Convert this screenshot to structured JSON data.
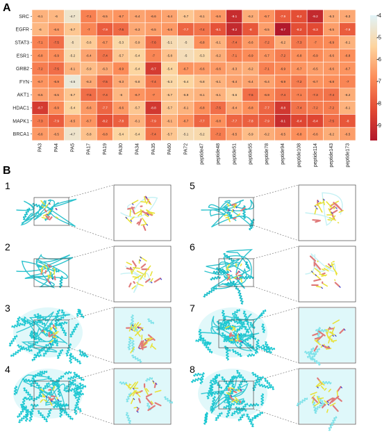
{
  "panel_a_label": "A",
  "panel_b_label": "B",
  "chart_data": {
    "type": "heatmap",
    "rows": [
      "SRC",
      "EGFR",
      "STAT3",
      "ESR1",
      "GRB2",
      "FYN",
      "AKT1",
      "HDAC1",
      "MAPK1",
      "BRCA1"
    ],
    "columns": [
      "PA3",
      "PA4",
      "PA5",
      "PA17",
      "PA19",
      "PA30",
      "PA34",
      "PA35",
      "PA60",
      "PA72",
      "peptide47",
      "peptide48",
      "peptide51",
      "peptide55",
      "peptide78",
      "peptide94",
      "peptide108",
      "peptide114",
      "peptide143",
      "peptide173"
    ],
    "values": [
      [
        -6.1,
        -6,
        -4.7,
        -7.1,
        -6.5,
        -6.7,
        -6.4,
        -6.6,
        -6.4,
        -5.7,
        -6.1,
        -6.6,
        -9.1,
        -6.2,
        -6.7,
        -7.9,
        -8.2,
        -9.2,
        -6.3,
        -6.3
      ],
      [
        -6,
        -6.6,
        -5.7,
        -7,
        -7.9,
        -7.6,
        -6.3,
        -6.5,
        -6.6,
        -7.7,
        -7.4,
        -8.1,
        -9.2,
        -8,
        -6.5,
        -9.7,
        -8.2,
        -8.3,
        -6.5,
        -7.9
      ],
      [
        -7.1,
        -7.5,
        -5,
        -5.6,
        -6.7,
        -5.3,
        -5.9,
        -7.6,
        -5.1,
        -5,
        -6.8,
        -6.1,
        -7.4,
        -6.6,
        -7.2,
        -6.2,
        -7.3,
        -7,
        -6.9,
        -6.1
      ],
      [
        -6.8,
        -6.9,
        -5.2,
        -6.4,
        -7.4,
        -5.7,
        -5.4,
        -7,
        -5.8,
        -5,
        -5.3,
        -6.2,
        -7.1,
        -6.9,
        -6.7,
        -7.2,
        -6.8,
        -6.9,
        -6.6,
        -6.8
      ],
      [
        -7.2,
        -7.5,
        -6.1,
        -5.9,
        -6.3,
        -6.9,
        -5.4,
        -8.7,
        -5.4,
        -6.7,
        -6.6,
        -6.6,
        -6.3,
        -6.2,
        -7.1,
        -6.9,
        -6.7,
        -6.5,
        -6.6,
        -6.7
      ],
      [
        -6.7,
        -6.9,
        -4.5,
        -6.3,
        -7.5,
        -6.3,
        -5.8,
        -7.4,
        -5.3,
        -5.4,
        -5.8,
        -6.1,
        -6.4,
        -6.4,
        -6.4,
        -6.9,
        -7.2,
        -6.7,
        -6.8,
        -7
      ],
      [
        -6.5,
        -6.5,
        -5.7,
        -7.5,
        -7.4,
        -6,
        -6.7,
        -7,
        -5.7,
        -5.9,
        -6.1,
        -6.1,
        -5.6,
        -7.5,
        -6.9,
        -7.4,
        -7.1,
        -7.3,
        -7.4,
        -6.2
      ],
      [
        -8.7,
        -6.9,
        -5.4,
        -6.6,
        -7.7,
        -6.6,
        -5.7,
        -8.8,
        -5.7,
        -6.1,
        -6.8,
        -7.5,
        -6.4,
        -6.8,
        -7.7,
        -8.8,
        -7.4,
        -7.2,
        -7.2,
        -6.1
      ],
      [
        -7.3,
        -7.9,
        -6.5,
        -6.7,
        -8.2,
        -7.8,
        -6.1,
        -7.9,
        -6.1,
        -6.7,
        -7.7,
        -6.8,
        -7.7,
        -7.8,
        -7.9,
        -9.1,
        -8.4,
        -8.4,
        -7.5,
        -8
      ],
      [
        -6.6,
        -6.5,
        -4.7,
        -5.8,
        -6.8,
        -5.4,
        -5.4,
        -7.4,
        -5.7,
        -5.1,
        -5.2,
        -7.2,
        -6.5,
        -5.9,
        -6.2,
        -6.5,
        -6.8,
        -6.6,
        -6.2,
        -6.5
      ]
    ],
    "colorbar_ticks": [
      -4,
      -5,
      -6,
      -7,
      -8,
      -9
    ],
    "value_range": [
      -9.7,
      -4.0
    ]
  },
  "structure_panels": [
    {
      "label": "1",
      "style": "small-protein-ribbon"
    },
    {
      "label": "2",
      "style": "small-protein-ribbon"
    },
    {
      "label": "3",
      "style": "large-helical-protein"
    },
    {
      "label": "4",
      "style": "large-helical-protein"
    },
    {
      "label": "5",
      "style": "small-protein-ribbon"
    },
    {
      "label": "6",
      "style": "medium-protein-sheets"
    },
    {
      "label": "7",
      "style": "large-helical-protein"
    },
    {
      "label": "8",
      "style": "large-helical-protein"
    }
  ]
}
